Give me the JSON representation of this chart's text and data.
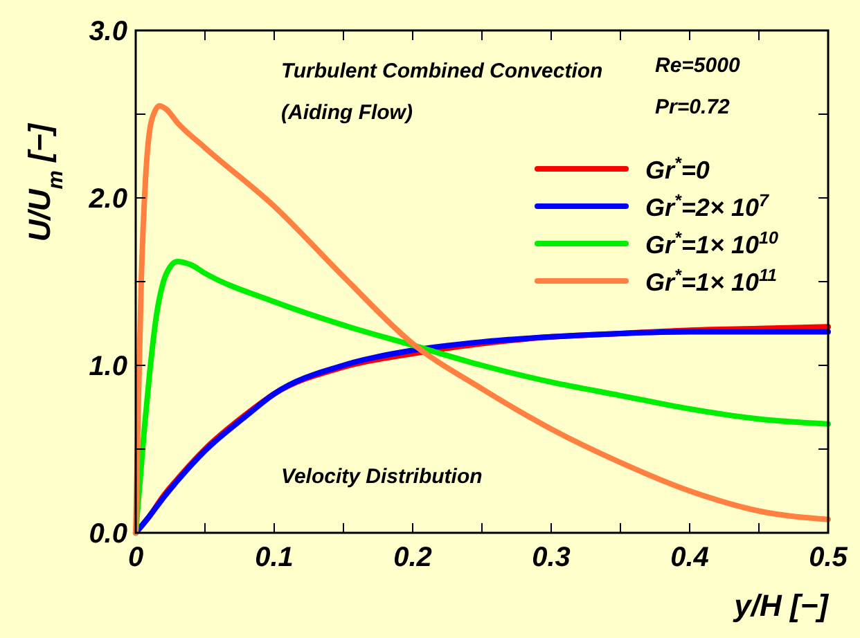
{
  "chart_data": {
    "type": "line",
    "xlabel": "y/H [−]",
    "ylabel": "U/U$_{m}$ [−]",
    "annotations": [
      "Turbulent Combined Convection",
      "(Aiding Flow)",
      "Re=5000",
      "Pr=0.72",
      "Velocity Distribution"
    ],
    "xlim": [
      0,
      0.5
    ],
    "ylim": [
      0,
      3
    ],
    "xticks": [
      {
        "value": 0,
        "label": "0"
      },
      {
        "value": 0.05,
        "label": null
      },
      0.1,
      {
        "value": 0.15,
        "label": null
      },
      0.2,
      {
        "value": 0.25,
        "label": null
      },
      0.3,
      {
        "value": 0.35,
        "label": null
      },
      0.4,
      {
        "value": 0.45,
        "label": null
      },
      0.5
    ],
    "yticks": [
      {
        "value": 0,
        "label": "0.0"
      },
      {
        "value": 0.5,
        "label": null
      },
      {
        "value": 1,
        "label": "1.0"
      },
      {
        "value": 1.5,
        "label": null
      },
      {
        "value": 2,
        "label": "2.0"
      },
      {
        "value": 2.5,
        "label": null
      },
      {
        "value": 3,
        "label": "3.0"
      }
    ],
    "grid": false,
    "legend": "top right",
    "line_style": "solid",
    "series": [
      {
        "name": "Gr$^{*}$=0",
        "color": "#ff0000",
        "x": [
          0,
          0.01,
          0.02,
          0.03,
          0.05,
          0.08,
          0.1,
          0.15,
          0.2,
          0.25,
          0.3,
          0.35,
          0.4,
          0.45,
          0.5
        ],
        "values": [
          0,
          0.1,
          0.22,
          0.32,
          0.5,
          0.71,
          0.83,
          0.99,
          1.07,
          1.13,
          1.17,
          1.19,
          1.21,
          1.22,
          1.23
        ]
      },
      {
        "name": "Gr$^{*}$=2× 10$^{7}$",
        "color": "#0000ff",
        "x": [
          0,
          0.01,
          0.02,
          0.03,
          0.05,
          0.08,
          0.1,
          0.15,
          0.2,
          0.25,
          0.3,
          0.35,
          0.4,
          0.45,
          0.5
        ],
        "values": [
          0,
          0.1,
          0.21,
          0.31,
          0.49,
          0.7,
          0.83,
          1.0,
          1.09,
          1.14,
          1.17,
          1.19,
          1.2,
          1.2,
          1.2
        ]
      },
      {
        "name": "Gr$^{*}$=1× 10$^{10}$",
        "color": "#00ee00",
        "x": [
          0,
          0.003,
          0.006,
          0.01,
          0.015,
          0.02,
          0.025,
          0.03,
          0.04,
          0.05,
          0.1,
          0.15,
          0.2,
          0.25,
          0.3,
          0.35,
          0.4,
          0.45,
          0.5
        ],
        "values": [
          0,
          0.3,
          0.6,
          0.95,
          1.3,
          1.5,
          1.59,
          1.62,
          1.6,
          1.55,
          1.38,
          1.24,
          1.12,
          1.0,
          0.9,
          0.82,
          0.74,
          0.68,
          0.65
        ]
      },
      {
        "name": "Gr$^{*}$=1× 10$^{11}$",
        "color": "#ff8040",
        "x": [
          0,
          0.002,
          0.004,
          0.007,
          0.01,
          0.014,
          0.017,
          0.022,
          0.03,
          0.05,
          0.1,
          0.15,
          0.2,
          0.25,
          0.3,
          0.35,
          0.4,
          0.45,
          0.5
        ],
        "values": [
          0,
          0.8,
          1.5,
          2.1,
          2.4,
          2.52,
          2.55,
          2.53,
          2.45,
          2.3,
          1.95,
          1.53,
          1.13,
          0.86,
          0.62,
          0.42,
          0.25,
          0.13,
          0.08
        ]
      }
    ]
  }
}
